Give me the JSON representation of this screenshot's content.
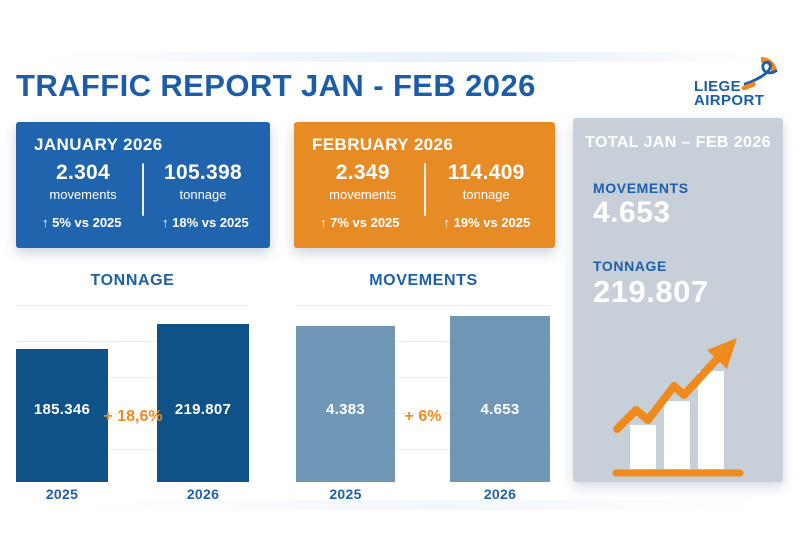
{
  "page": {
    "title": "TRAFFIC REPORT JAN - FEB 2026"
  },
  "logo": {
    "name_line1": "LIEGE",
    "name_line2": "AIRPORT"
  },
  "cards": {
    "january": {
      "title": "JANUARY 2026",
      "movements_value": "2.304",
      "movements_label": "movements",
      "movements_delta": "↑ 5% vs 2025",
      "tonnage_value": "105.398",
      "tonnage_label": "tonnage",
      "tonnage_delta": "↑ 18% vs 2025"
    },
    "february": {
      "title": "FEBRUARY 2026",
      "movements_value": "2.349",
      "movements_label": "movements",
      "movements_delta": "↑ 7% vs 2025",
      "tonnage_value": "114.409",
      "tonnage_label": "tonnage",
      "tonnage_delta": "↑ 19% vs 2025"
    },
    "total": {
      "title": "TOTAL JAN – FEB 2026",
      "movements_label": "MOVEMENTS",
      "movements_value": "4.653",
      "tonnage_label": "TONNAGE",
      "tonnage_value": "219.807"
    }
  },
  "chart_data": [
    {
      "type": "bar",
      "title": "TONNAGE",
      "categories": [
        "2025",
        "2026"
      ],
      "values": [
        185346,
        219807
      ],
      "value_labels": [
        "185.346",
        "219.807"
      ],
      "delta_label": "+ 18,6%",
      "bar_color": "#0e5288",
      "ylim": [
        0,
        230000
      ],
      "grid": true,
      "legend": "none"
    },
    {
      "type": "bar",
      "title": "MOVEMENTS",
      "categories": [
        "2025",
        "2026"
      ],
      "values": [
        4383,
        4653
      ],
      "value_labels": [
        "4.383",
        "4.653"
      ],
      "delta_label": "+ 6%",
      "bar_color": "#7197b7",
      "ylim": [
        0,
        4900
      ],
      "grid": true,
      "legend": "none"
    }
  ],
  "colors": {
    "primary_blue": "#1d5ca9",
    "card_blue": "#2064ad",
    "card_orange": "#e78c24",
    "total_card_bg": "#c7d0d9",
    "dark_bar_blue": "#0e5288",
    "light_bar_blue": "#7197b7",
    "accent_orange": "#ee8b1e"
  }
}
